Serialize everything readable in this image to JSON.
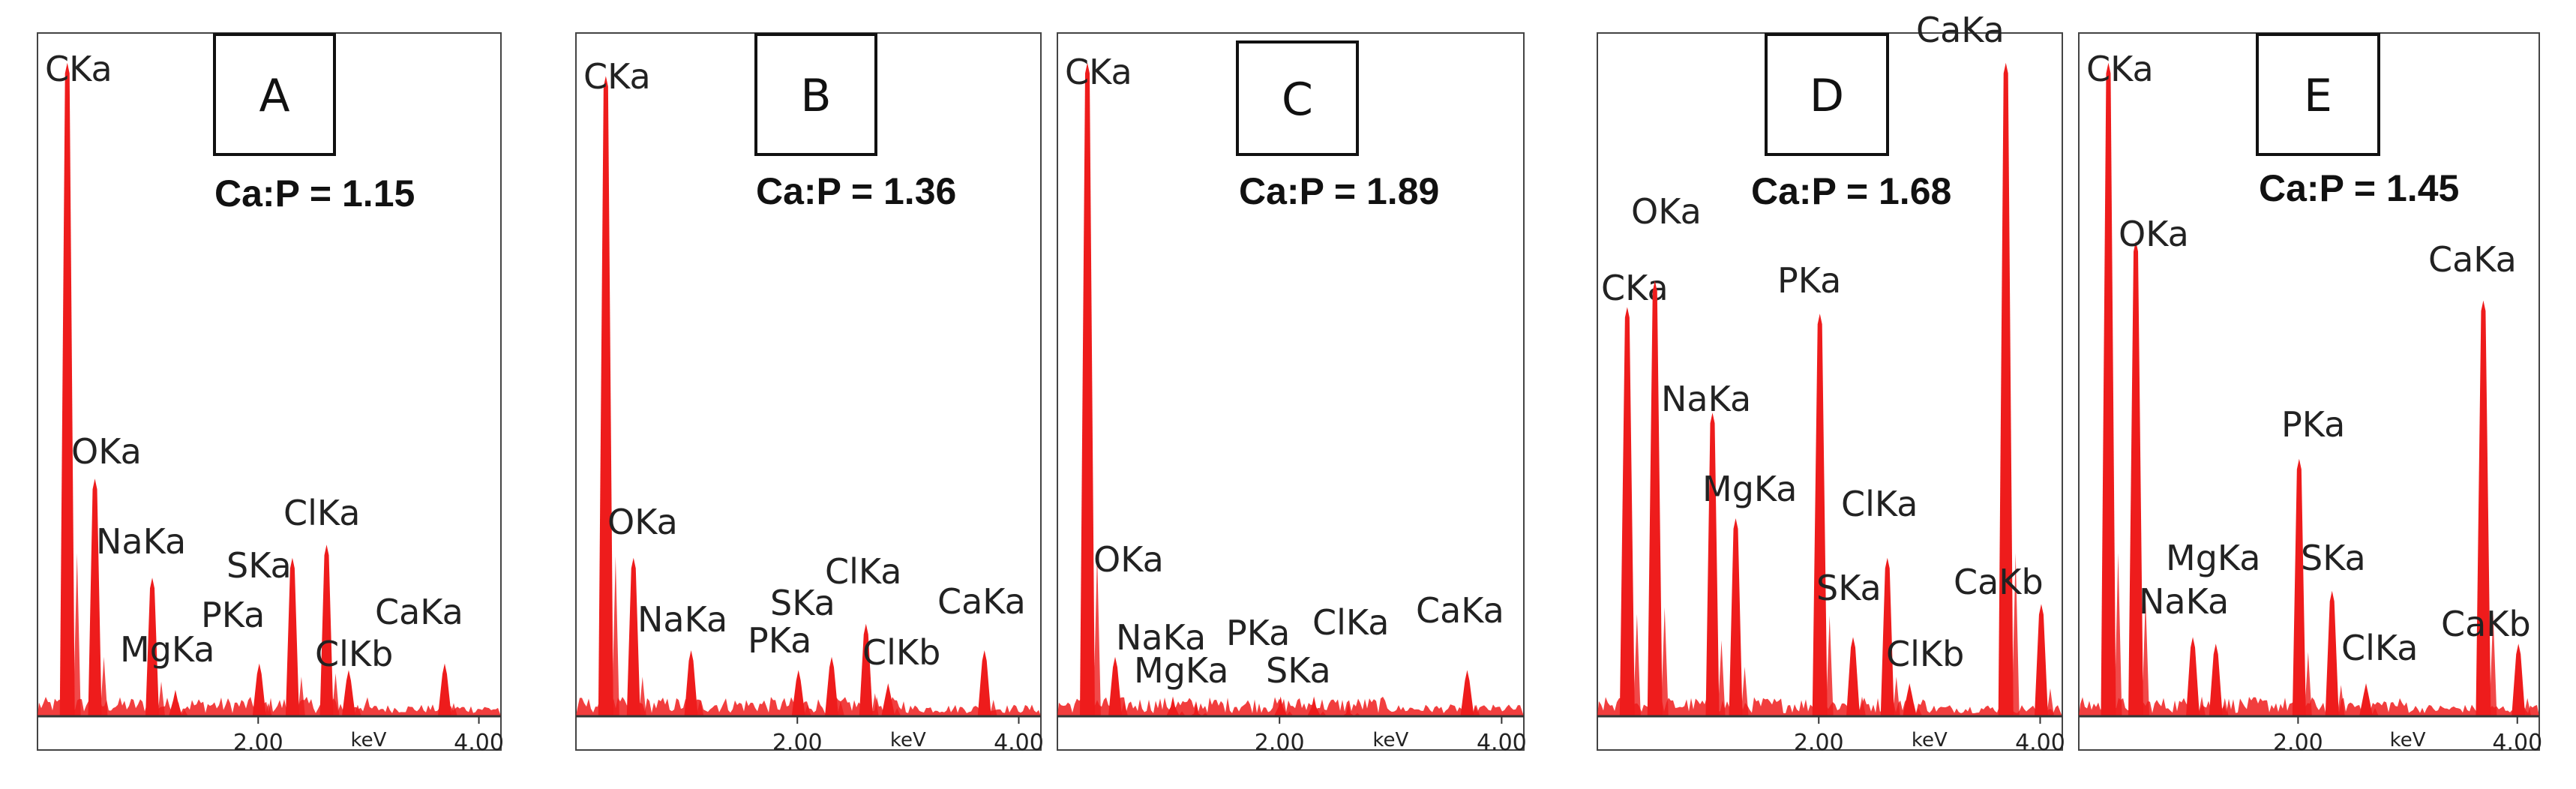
{
  "figure_title": "",
  "colors": {
    "spectrum": "#ee1c1c",
    "frame": "#444444",
    "text": "#222222"
  },
  "chart_data": [
    {
      "type": "area",
      "panel": "A",
      "ratio_text": "Ca:P = 1.15",
      "xlabel": "keV",
      "x_ticks": [
        {
          "value": 2.0,
          "label": "2.00"
        },
        {
          "value": 4.0,
          "label": "4.00"
        }
      ],
      "xlim": [
        0,
        4.2
      ],
      "ylim": [
        0,
        1.0
      ],
      "peaks": [
        {
          "name": "CKa",
          "x": 0.27,
          "y": 0.99
        },
        {
          "name": "OKa",
          "x": 0.52,
          "y": 0.36
        },
        {
          "name": "NaKa",
          "x": 1.04,
          "y": 0.21
        },
        {
          "name": "MgKa",
          "x": 1.25,
          "y": 0.04
        },
        {
          "name": "PKa",
          "x": 2.01,
          "y": 0.08
        },
        {
          "name": "SKa",
          "x": 2.31,
          "y": 0.24
        },
        {
          "name": "ClKa",
          "x": 2.62,
          "y": 0.26
        },
        {
          "name": "ClKb",
          "x": 2.82,
          "y": 0.07
        },
        {
          "name": "CaKa",
          "x": 3.69,
          "y": 0.08
        }
      ]
    },
    {
      "type": "area",
      "panel": "B",
      "ratio_text": "Ca:P = 1.36",
      "xlabel": "keV",
      "x_ticks": [
        {
          "value": 2.0,
          "label": "2.00"
        },
        {
          "value": 4.0,
          "label": "4.00"
        }
      ],
      "xlim": [
        0,
        4.2
      ],
      "ylim": [
        0,
        1.0
      ],
      "peaks": [
        {
          "name": "CKa",
          "x": 0.27,
          "y": 0.97
        },
        {
          "name": "OKa",
          "x": 0.52,
          "y": 0.24
        },
        {
          "name": "NaKa",
          "x": 1.04,
          "y": 0.1
        },
        {
          "name": "PKa",
          "x": 2.01,
          "y": 0.07
        },
        {
          "name": "SKa",
          "x": 2.31,
          "y": 0.09
        },
        {
          "name": "ClKa",
          "x": 2.62,
          "y": 0.14
        },
        {
          "name": "ClKb",
          "x": 2.82,
          "y": 0.05
        },
        {
          "name": "CaKa",
          "x": 3.69,
          "y": 0.1
        }
      ]
    },
    {
      "type": "area",
      "panel": "C",
      "ratio_text": "Ca:P = 1.89",
      "xlabel": "keV",
      "x_ticks": [
        {
          "value": 2.0,
          "label": "2.00"
        },
        {
          "value": 4.0,
          "label": "4.00"
        }
      ],
      "xlim": [
        0,
        4.2
      ],
      "ylim": [
        0,
        1.0
      ],
      "peaks": [
        {
          "name": "CKa",
          "x": 0.27,
          "y": 0.99
        },
        {
          "name": "OKa",
          "x": 0.52,
          "y": 0.09
        },
        {
          "name": "NaKa",
          "x": 1.04,
          "y": 0.03
        },
        {
          "name": "MgKa",
          "x": 1.25,
          "y": 0.02
        },
        {
          "name": "PKa",
          "x": 2.01,
          "y": 0.03
        },
        {
          "name": "SKa",
          "x": 2.31,
          "y": 0.03
        },
        {
          "name": "ClKa",
          "x": 2.62,
          "y": 0.02
        },
        {
          "name": "CaKa",
          "x": 3.69,
          "y": 0.07
        }
      ]
    },
    {
      "type": "area",
      "panel": "D",
      "ratio_text": "Ca:P = 1.68",
      "xlabel": "keV",
      "x_ticks": [
        {
          "value": 2.0,
          "label": "2.00"
        },
        {
          "value": 4.0,
          "label": "4.00"
        }
      ],
      "xlim": [
        0,
        4.2
      ],
      "ylim": [
        0,
        1.0
      ],
      "peaks": [
        {
          "name": "CKa",
          "x": 0.27,
          "y": 0.62
        },
        {
          "name": "OKa",
          "x": 0.52,
          "y": 0.66
        },
        {
          "name": "NaKa",
          "x": 1.04,
          "y": 0.46
        },
        {
          "name": "MgKa",
          "x": 1.25,
          "y": 0.3
        },
        {
          "name": "PKa",
          "x": 2.01,
          "y": 0.61
        },
        {
          "name": "SKa",
          "x": 2.31,
          "y": 0.12
        },
        {
          "name": "ClKa",
          "x": 2.62,
          "y": 0.24
        },
        {
          "name": "ClKb",
          "x": 2.82,
          "y": 0.05
        },
        {
          "name": "CaKa",
          "x": 3.69,
          "y": 0.99
        },
        {
          "name": "CaKb",
          "x": 4.01,
          "y": 0.17
        }
      ]
    },
    {
      "type": "area",
      "panel": "E",
      "ratio_text": "Ca:P = 1.45",
      "xlabel": "keV",
      "x_ticks": [
        {
          "value": 2.0,
          "label": "2.00"
        },
        {
          "value": 4.0,
          "label": "4.00"
        }
      ],
      "xlim": [
        0,
        4.2
      ],
      "ylim": [
        0,
        1.0
      ],
      "peaks": [
        {
          "name": "CKa",
          "x": 0.27,
          "y": 0.99
        },
        {
          "name": "OKa",
          "x": 0.52,
          "y": 0.72
        },
        {
          "name": "NaKa",
          "x": 1.04,
          "y": 0.12
        },
        {
          "name": "MgKa",
          "x": 1.25,
          "y": 0.11
        },
        {
          "name": "PKa",
          "x": 2.01,
          "y": 0.39
        },
        {
          "name": "SKa",
          "x": 2.31,
          "y": 0.19
        },
        {
          "name": "ClKa",
          "x": 2.62,
          "y": 0.05
        },
        {
          "name": "CaKa",
          "x": 3.69,
          "y": 0.63
        },
        {
          "name": "CaKb",
          "x": 4.01,
          "y": 0.11
        }
      ]
    }
  ]
}
